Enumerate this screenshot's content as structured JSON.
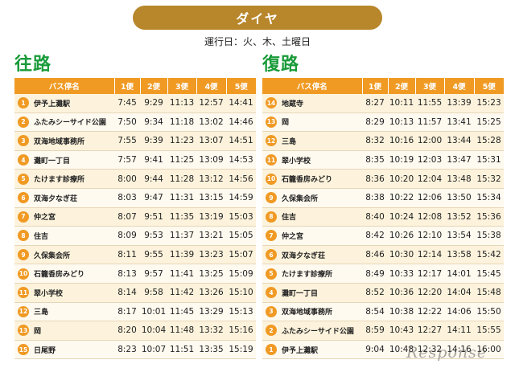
{
  "title": "ダイヤ",
  "subtitle": "運行日：火、木、土曜日",
  "outbound": {
    "title": "往路",
    "headers": [
      "バス停名",
      "1便",
      "2便",
      "3便",
      "4便",
      "5便"
    ],
    "rows": [
      {
        "no": "1",
        "stop": "伊予上灘駅",
        "times": [
          "7:45",
          "9:29",
          "11:13",
          "12:57",
          "14:41"
        ]
      },
      {
        "no": "2",
        "stop": "ふたみシーサイド公園",
        "times": [
          "7:50",
          "9:34",
          "11:18",
          "13:02",
          "14:46"
        ]
      },
      {
        "no": "3",
        "stop": "双海地域事務所",
        "times": [
          "7:55",
          "9:39",
          "11:23",
          "13:07",
          "14:51"
        ]
      },
      {
        "no": "4",
        "stop": "灘町一丁目",
        "times": [
          "7:57",
          "9:41",
          "11:25",
          "13:09",
          "14:53"
        ]
      },
      {
        "no": "5",
        "stop": "たけます診療所",
        "times": [
          "8:00",
          "9:44",
          "11:28",
          "13:12",
          "14:56"
        ]
      },
      {
        "no": "6",
        "stop": "双海夕なぎ荘",
        "times": [
          "8:03",
          "9:47",
          "11:31",
          "13:15",
          "14:59"
        ]
      },
      {
        "no": "7",
        "stop": "仲之宮",
        "times": [
          "8:07",
          "9:51",
          "11:35",
          "13:19",
          "15:03"
        ]
      },
      {
        "no": "8",
        "stop": "住吉",
        "times": [
          "8:09",
          "9:53",
          "11:37",
          "13:21",
          "15:05"
        ]
      },
      {
        "no": "9",
        "stop": "久保集会所",
        "times": [
          "8:11",
          "9:55",
          "11:39",
          "13:23",
          "15:07"
        ]
      },
      {
        "no": "10",
        "stop": "石籠香房みどり",
        "times": [
          "8:13",
          "9:57",
          "11:41",
          "13:25",
          "15:09"
        ]
      },
      {
        "no": "11",
        "stop": "翠小学校",
        "times": [
          "8:14",
          "9:58",
          "11:42",
          "13:26",
          "15:10"
        ]
      },
      {
        "no": "12",
        "stop": "三島",
        "times": [
          "8:17",
          "10:01",
          "11:45",
          "13:29",
          "15:13"
        ]
      },
      {
        "no": "13",
        "stop": "岡",
        "times": [
          "8:20",
          "10:04",
          "11:48",
          "13:32",
          "15:16"
        ]
      },
      {
        "no": "15",
        "stop": "日尾野",
        "times": [
          "8:23",
          "10:07",
          "11:51",
          "13:35",
          "15:19"
        ]
      }
    ]
  },
  "return": {
    "title": "復路",
    "headers": [
      "バス停名",
      "1便",
      "2便",
      "3便",
      "4便",
      "5便"
    ],
    "rows": [
      {
        "no": "14",
        "stop": "地蔵寺",
        "times": [
          "8:27",
          "10:11",
          "11:55",
          "13:39",
          "15:23"
        ]
      },
      {
        "no": "13",
        "stop": "岡",
        "times": [
          "8:29",
          "10:13",
          "11:57",
          "13:41",
          "15:25"
        ]
      },
      {
        "no": "12",
        "stop": "三島",
        "times": [
          "8:32",
          "10:16",
          "12:00",
          "13:44",
          "15:28"
        ]
      },
      {
        "no": "11",
        "stop": "翠小学校",
        "times": [
          "8:35",
          "10:19",
          "12:03",
          "13:47",
          "15:31"
        ]
      },
      {
        "no": "10",
        "stop": "石籠香房みどり",
        "times": [
          "8:36",
          "10:20",
          "12:04",
          "13:48",
          "15:32"
        ]
      },
      {
        "no": "9",
        "stop": "久保集会所",
        "times": [
          "8:38",
          "10:22",
          "12:06",
          "13:50",
          "15:34"
        ]
      },
      {
        "no": "8",
        "stop": "住吉",
        "times": [
          "8:40",
          "10:24",
          "12:08",
          "13:52",
          "15:36"
        ]
      },
      {
        "no": "7",
        "stop": "仲之宮",
        "times": [
          "8:42",
          "10:26",
          "12:10",
          "13:54",
          "15:38"
        ]
      },
      {
        "no": "6",
        "stop": "双海夕なぎ荘",
        "times": [
          "8:46",
          "10:30",
          "12:14",
          "13:58",
          "15:42"
        ]
      },
      {
        "no": "5",
        "stop": "たけます診療所",
        "times": [
          "8:49",
          "10:33",
          "12:17",
          "14:01",
          "15:45"
        ]
      },
      {
        "no": "4",
        "stop": "灘町一丁目",
        "times": [
          "8:52",
          "10:36",
          "12:20",
          "14:04",
          "15:48"
        ]
      },
      {
        "no": "3",
        "stop": "双海地域事務所",
        "times": [
          "8:54",
          "10:38",
          "12:22",
          "14:06",
          "15:50"
        ]
      },
      {
        "no": "2",
        "stop": "ふたみシーサイド公園",
        "times": [
          "8:59",
          "10:43",
          "12:27",
          "14:11",
          "15:55"
        ]
      },
      {
        "no": "1",
        "stop": "伊予上灘駅",
        "times": [
          "9:04",
          "10:48",
          "12:32",
          "14:16",
          "16:00"
        ]
      }
    ]
  },
  "watermark": "Response"
}
